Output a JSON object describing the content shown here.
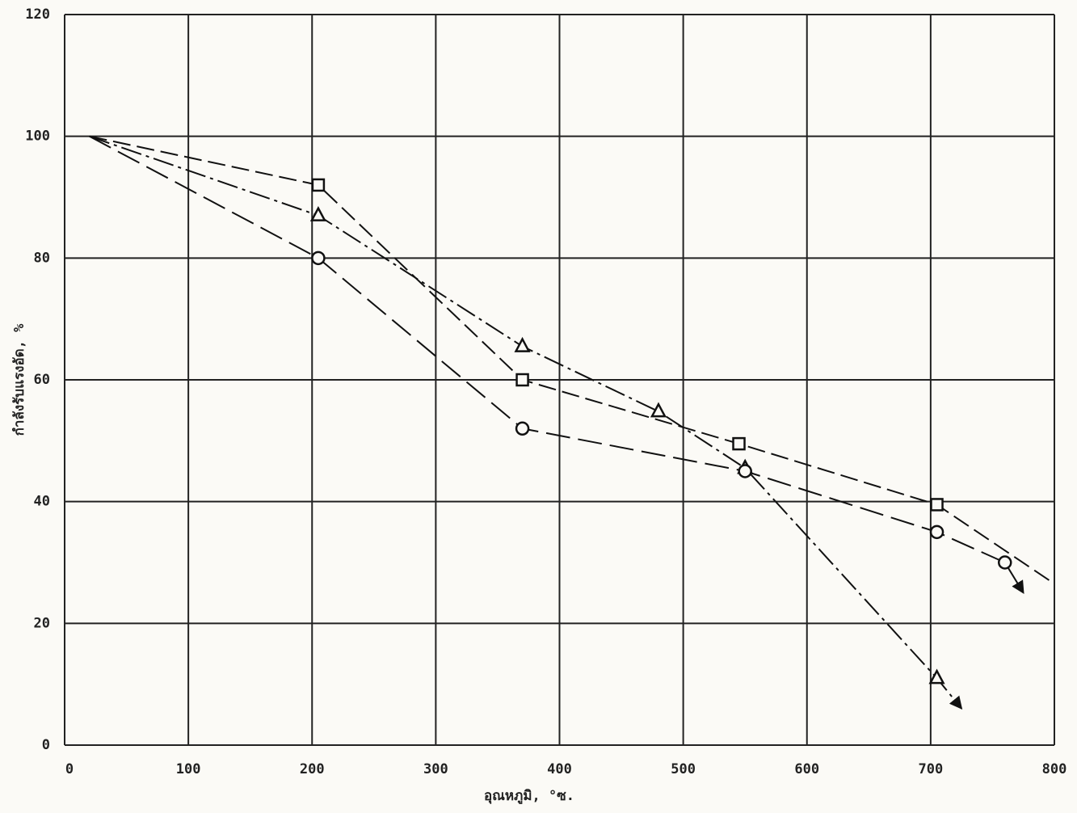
{
  "chart_data": {
    "type": "line",
    "xlabel": "อุณหภูมิ, °ซ.",
    "ylabel": "กำลังรับแรงอัด, %",
    "xlim": [
      0,
      800
    ],
    "xticks": [
      0,
      100,
      200,
      300,
      400,
      500,
      600,
      700,
      800
    ],
    "ylim": [
      0,
      120
    ],
    "yticks": [
      0,
      20,
      40,
      60,
      80,
      100,
      120
    ],
    "grid": true,
    "series": [
      {
        "marker": "square",
        "color": "#111111",
        "dash": "22 8",
        "arrow_end": false,
        "x": [
          20,
          205,
          370,
          545,
          705,
          800
        ],
        "values": [
          100,
          92,
          60,
          49.5,
          39.5,
          26.5
        ],
        "marked": [
          false,
          true,
          true,
          true,
          true,
          false
        ]
      },
      {
        "marker": "triangle",
        "color": "#111111",
        "dash": "26 6 4 6",
        "arrow_end": true,
        "x": [
          20,
          205,
          370,
          480,
          550,
          705,
          725
        ],
        "values": [
          100,
          87,
          65.5,
          54.8,
          45.5,
          11,
          6
        ],
        "marked": [
          false,
          true,
          true,
          true,
          true,
          true,
          false
        ]
      },
      {
        "marker": "circle",
        "color": "#111111",
        "dash": "30 10",
        "arrow_end": true,
        "x": [
          20,
          205,
          370,
          550,
          705,
          760,
          775
        ],
        "values": [
          100,
          80,
          52,
          45,
          35,
          30,
          25
        ],
        "marked": [
          false,
          true,
          true,
          true,
          true,
          true,
          false
        ]
      }
    ]
  }
}
